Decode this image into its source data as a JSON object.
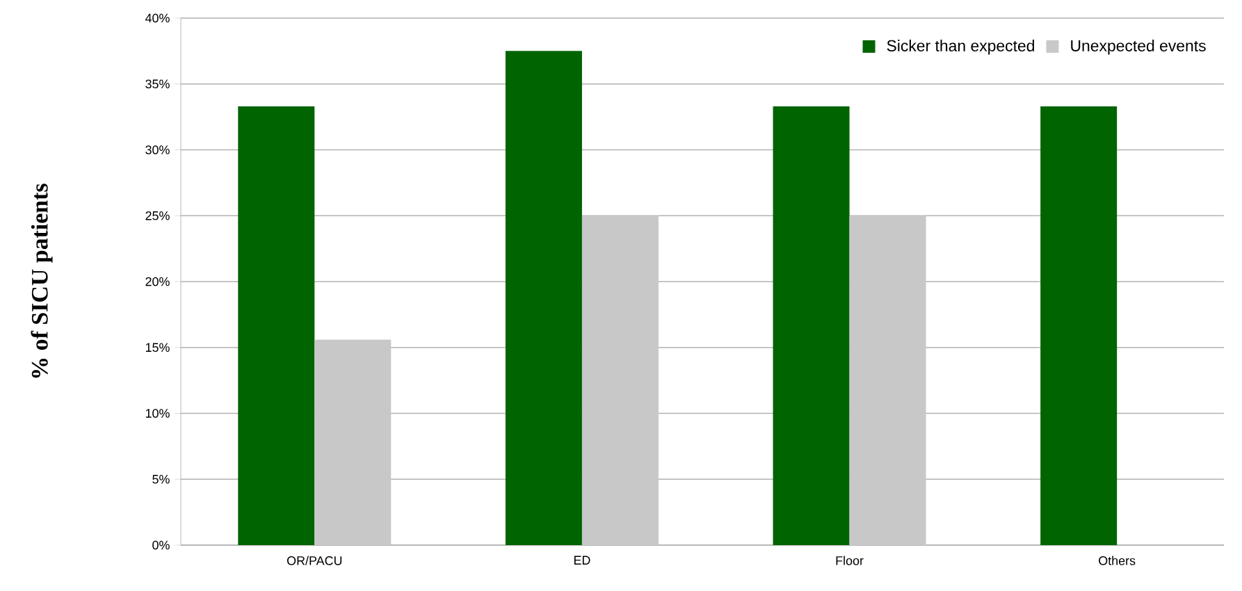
{
  "chart_data": {
    "type": "bar",
    "ylabel": "% of SICU patients",
    "categories": [
      "OR/PACU",
      "ED",
      "Floor",
      "Others"
    ],
    "series": [
      {
        "name": "Sicker than expected",
        "color": "#006400",
        "values": [
          33.3,
          37.5,
          33.3,
          33.3
        ]
      },
      {
        "name": "Unexpected events",
        "color": "#c8c8c8",
        "values": [
          15.6,
          25,
          25,
          0
        ]
      }
    ],
    "ylim": [
      0,
      40
    ],
    "yticks": [
      {
        "value": 0,
        "label": "0%"
      },
      {
        "value": 5,
        "label": "5%"
      },
      {
        "value": 10,
        "label": "10%"
      },
      {
        "value": 15,
        "label": "15%"
      },
      {
        "value": 20,
        "label": "20%"
      },
      {
        "value": 25,
        "label": "25%"
      },
      {
        "value": 30,
        "label": "30%"
      },
      {
        "value": 35,
        "label": "35%"
      },
      {
        "value": 40,
        "label": "40%"
      }
    ],
    "grid": "y",
    "legend": "top right"
  }
}
